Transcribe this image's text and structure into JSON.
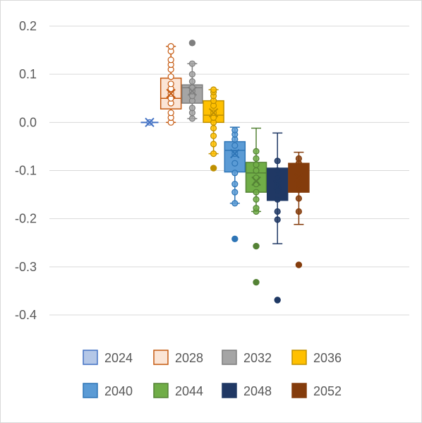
{
  "chart_data": {
    "type": "box",
    "title": "",
    "xlabel": "",
    "ylabel": "",
    "ylim": [
      -0.4,
      0.2
    ],
    "yticks": [
      0.2,
      0.1,
      0.0,
      -0.1,
      -0.2,
      -0.3,
      -0.4
    ],
    "ytick_labels": [
      "0.2",
      "0.1",
      "0.0",
      "-0.1",
      "-0.2",
      "-0.3",
      "-0.4"
    ],
    "grid": true,
    "legend_position": "bottom",
    "series": [
      {
        "name": "2024",
        "fill": "#b4c7e7",
        "stroke": "#4472c4",
        "whisker_low": 0.0,
        "q1": 0.0,
        "median": 0.0,
        "q3": 0.0,
        "whisker_high": 0.0,
        "mean": 0.0,
        "points": [
          0.0
        ],
        "outliers": []
      },
      {
        "name": "2028",
        "fill": "#fbe5d6",
        "stroke": "#c55a11",
        "whisker_low": 0.0,
        "q1": 0.028,
        "median": 0.05,
        "q3": 0.092,
        "whisker_high": 0.158,
        "mean": 0.06,
        "points": [
          0.0,
          0.01,
          0.02,
          0.04,
          0.05,
          0.06,
          0.07,
          0.08,
          0.095,
          0.11,
          0.12,
          0.13,
          0.148,
          0.158
        ],
        "outliers": []
      },
      {
        "name": "2032",
        "fill": "#a5a5a5",
        "stroke": "#7f7f7f",
        "whisker_low": 0.008,
        "q1": 0.04,
        "median": 0.072,
        "q3": 0.078,
        "whisker_high": 0.122,
        "mean": 0.065,
        "points": [
          0.008,
          0.02,
          0.03,
          0.045,
          0.055,
          0.065,
          0.072,
          0.085,
          0.1,
          0.122
        ],
        "outliers": [
          0.165
        ]
      },
      {
        "name": "2036",
        "fill": "#ffc000",
        "stroke": "#bf9000",
        "whisker_low": -0.065,
        "q1": 0.0,
        "median": 0.015,
        "q3": 0.045,
        "whisker_high": 0.068,
        "mean": 0.02,
        "points": [
          -0.065,
          -0.045,
          -0.028,
          -0.012,
          0.0,
          0.01,
          0.02,
          0.035,
          0.045,
          0.055,
          0.063,
          0.068
        ],
        "outliers": [
          -0.095
        ]
      },
      {
        "name": "2040",
        "fill": "#5b9bd5",
        "stroke": "#2e75b6",
        "whisker_low": -0.168,
        "q1": -0.103,
        "median": -0.058,
        "q3": -0.04,
        "whisker_high": -0.01,
        "mean": -0.065,
        "points": [
          -0.168,
          -0.145,
          -0.128,
          -0.105,
          -0.085,
          -0.065,
          -0.048,
          -0.035,
          -0.025,
          -0.016
        ],
        "outliers": [
          -0.242
        ]
      },
      {
        "name": "2044",
        "fill": "#70ad47",
        "stroke": "#548235",
        "whisker_low": -0.185,
        "q1": -0.145,
        "median": -0.105,
        "q3": -0.083,
        "whisker_high": -0.012,
        "mean": -0.122,
        "points": [
          -0.185,
          -0.178,
          -0.16,
          -0.145,
          -0.128,
          -0.115,
          -0.1,
          -0.088,
          -0.075,
          -0.06
        ],
        "outliers": [
          -0.257,
          -0.332
        ]
      },
      {
        "name": "2048",
        "fill": "#203864",
        "stroke": "#1f3864",
        "whisker_low": -0.252,
        "q1": -0.162,
        "median": -0.132,
        "q3": -0.095,
        "whisker_high": -0.022,
        "mean": -0.13,
        "points": [
          -0.202,
          -0.185,
          -0.16,
          -0.142,
          -0.13,
          -0.115,
          -0.1,
          -0.08
        ],
        "outliers": [
          -0.369
        ]
      },
      {
        "name": "2052",
        "fill": "#843c0c",
        "stroke": "#843c0c",
        "whisker_low": -0.212,
        "q1": -0.145,
        "median": -0.105,
        "q3": -0.085,
        "whisker_high": -0.062,
        "mean": -0.115,
        "points": [
          -0.185,
          -0.158,
          -0.14,
          -0.128,
          -0.115,
          -0.1,
          -0.085,
          -0.075
        ],
        "outliers": [
          -0.296
        ]
      }
    ]
  }
}
